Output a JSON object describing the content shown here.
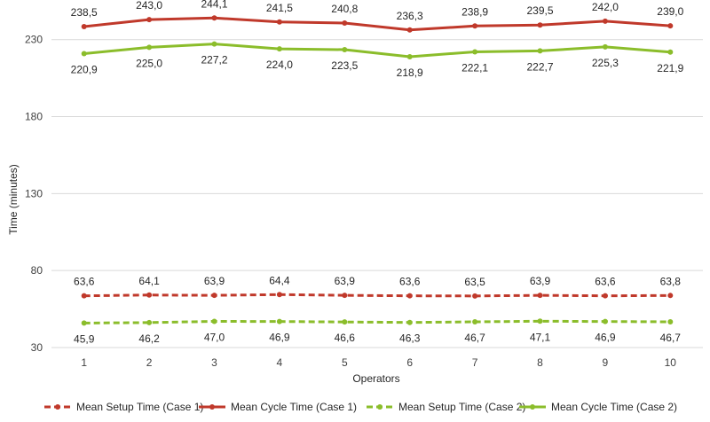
{
  "chart_data": {
    "type": "line",
    "title": "",
    "xlabel": "Operators",
    "ylabel": "Time (minutes)",
    "categories": [
      "1",
      "2",
      "3",
      "4",
      "5",
      "6",
      "7",
      "8",
      "9",
      "10"
    ],
    "ylim": [
      30,
      250
    ],
    "yticks": [
      30,
      80,
      130,
      180,
      230
    ],
    "grid": true,
    "legend_position": "bottom",
    "decimal_separator": ",",
    "series": [
      {
        "name": "Mean Setup Time (Case 1)",
        "color": "#c0392b",
        "dashed": true,
        "label_position": "above",
        "values": [
          63.6,
          64.1,
          63.9,
          64.4,
          63.9,
          63.6,
          63.5,
          63.9,
          63.6,
          63.8
        ]
      },
      {
        "name": "Mean Cycle Time (Case 1)",
        "color": "#c0392b",
        "dashed": false,
        "label_position": "above",
        "values": [
          238.5,
          243.0,
          244.1,
          241.5,
          240.8,
          236.3,
          238.9,
          239.5,
          242.0,
          239.0
        ]
      },
      {
        "name": "Mean Setup Time (Case 2)",
        "color": "#8bbd2b",
        "dashed": true,
        "label_position": "below",
        "values": [
          45.9,
          46.2,
          47.0,
          46.9,
          46.6,
          46.3,
          46.7,
          47.1,
          46.9,
          46.7
        ]
      },
      {
        "name": "Mean Cycle Time (Case 2)",
        "color": "#8bbd2b",
        "dashed": false,
        "label_position": "below",
        "values": [
          220.9,
          225.0,
          227.2,
          224.0,
          223.5,
          218.9,
          222.1,
          222.7,
          225.3,
          221.9
        ]
      }
    ]
  }
}
